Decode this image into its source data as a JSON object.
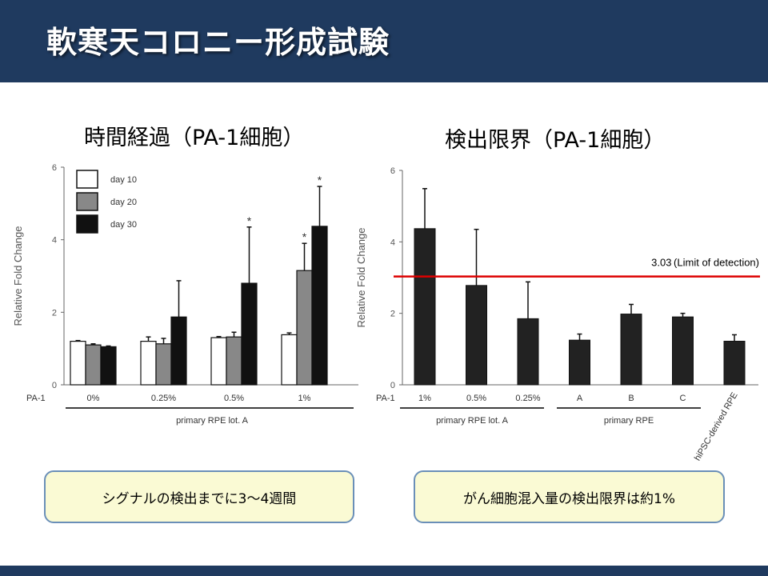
{
  "slide": {
    "title": "軟寒天コロニー形成試験"
  },
  "charts": [
    {
      "heading": "時間経過（PA-1細胞）",
      "callout": "シグナルの検出までに3～4週間"
    },
    {
      "heading": "検出限界（PA-1細胞）",
      "callout": "がん細胞混入量の検出限界は約1%"
    }
  ],
  "chart_data": [
    {
      "type": "bar",
      "ylabel": "Relative Fold Change",
      "ylim": [
        0,
        6
      ],
      "yticks": [
        "0",
        "2",
        "4",
        "6"
      ],
      "x_prefix": "PA-1",
      "categories": [
        "0%",
        "0.25%",
        "0.5%",
        "1%"
      ],
      "group_label": "primary RPE lot. A",
      "legend_position": "top-left",
      "series": [
        {
          "name": "day 10",
          "color": "#ffffff",
          "values": [
            1.2,
            1.2,
            1.3,
            1.38
          ],
          "errors": [
            0.02,
            0.12,
            0.03,
            0.05
          ],
          "significant": [
            false,
            false,
            false,
            false
          ]
        },
        {
          "name": "day 20",
          "color": "#888888",
          "values": [
            1.1,
            1.13,
            1.32,
            3.15
          ],
          "errors": [
            0.03,
            0.15,
            0.13,
            0.75
          ],
          "significant": [
            false,
            false,
            false,
            true
          ]
        },
        {
          "name": "day 30",
          "color": "#111111",
          "values": [
            1.05,
            1.87,
            2.8,
            4.37
          ],
          "errors": [
            0.02,
            1.0,
            1.55,
            1.1
          ],
          "significant": [
            false,
            false,
            true,
            true
          ]
        }
      ],
      "significance_marker": "*"
    },
    {
      "type": "bar",
      "ylabel": "Relative Fold Change",
      "ylim": [
        0,
        6
      ],
      "yticks": [
        "0",
        "2",
        "4",
        "6"
      ],
      "x_prefix": "PA-1",
      "categories": [
        "1%",
        "0.5%",
        "0.25%",
        "A",
        "B",
        "C",
        "hiPSC-derived RPE"
      ],
      "values": [
        4.37,
        2.78,
        1.85,
        1.25,
        1.98,
        1.9,
        1.22
      ],
      "errors": [
        1.12,
        1.57,
        1.03,
        0.17,
        0.27,
        0.1,
        0.18
      ],
      "bar_color": "#222222",
      "groups": [
        {
          "label": "primary RPE lot. A",
          "categories": [
            "1%",
            "0.5%",
            "0.25%"
          ]
        },
        {
          "label": "primary RPE",
          "categories": [
            "A",
            "B",
            "C"
          ]
        }
      ],
      "reference_line": {
        "value": 3.03,
        "label": "3.03 (Limit of detection)",
        "color": "#dd0000"
      }
    }
  ]
}
